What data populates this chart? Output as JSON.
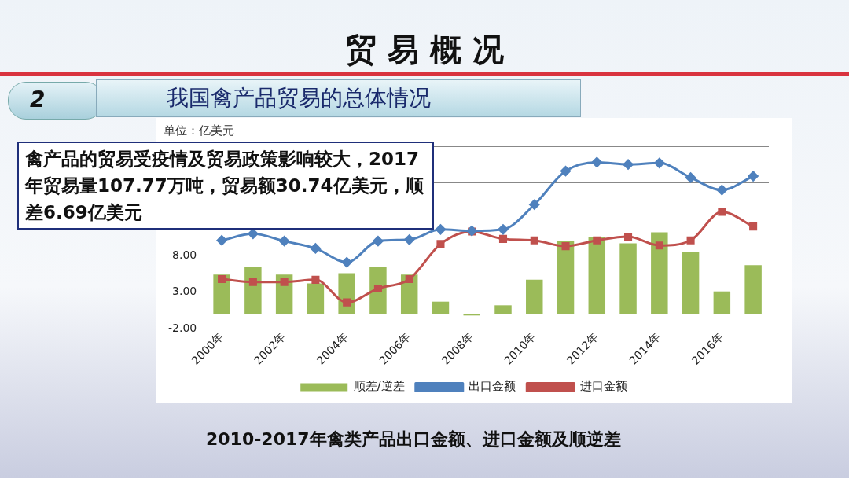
{
  "chart_data": {
    "type": "bar",
    "title": "贸 易 概 况",
    "subtitle": "我国禽产品贸易的总体情况",
    "ylabel": "单位：亿美元",
    "categories": [
      "2000年",
      null,
      "2002年",
      null,
      "2004年",
      null,
      "2006年",
      null,
      "2008年",
      null,
      "2010年",
      null,
      "2012年",
      null,
      "2014年",
      null,
      "2016年",
      null
    ],
    "series": [
      {
        "name": "顺差/逆差",
        "color": "#9bbb59",
        "values": [
          5.4,
          6.4,
          5.4,
          4.2,
          5.6,
          6.4,
          5.4,
          1.7,
          -0.2,
          1.2,
          4.7,
          10.0,
          10.6,
          9.7,
          11.2,
          8.5,
          3.1,
          6.7
        ]
      },
      {
        "name": "出口金额",
        "type": "line",
        "color": "#4f81bd",
        "marker": "diamond",
        "values": [
          10.1,
          11.0,
          10.0,
          9.0,
          7.1,
          10.0,
          10.2,
          11.6,
          11.4,
          11.6,
          15.0,
          19.6,
          20.8,
          20.5,
          20.7,
          18.7,
          17.0,
          18.9
        ]
      },
      {
        "name": "进口金额",
        "type": "line",
        "color": "#c0504d",
        "marker": "square",
        "values": [
          4.8,
          4.4,
          4.4,
          4.7,
          1.6,
          3.5,
          4.8,
          9.6,
          11.3,
          10.3,
          10.1,
          9.3,
          10.1,
          10.6,
          9.4,
          10.1,
          14.0,
          12.0
        ]
      }
    ],
    "ylim": [
      -2,
      23
    ],
    "yticks": [
      {
        "value": -2,
        "label": "-2.00"
      },
      {
        "value": 3,
        "label": "3.00"
      },
      {
        "value": 8,
        "label": "8.00"
      },
      {
        "value": 13,
        "label": null
      },
      {
        "value": 18,
        "label": null
      },
      {
        "value": 23,
        "label": null
      }
    ],
    "grid": "y",
    "legend": "bottom",
    "annotations": [
      "2",
      "禽产品的贸易受疫情及贸易政策影响较大，2017年贸易量107.77万吨，贸易额30.74亿美元，顺差6.69亿美元",
      "2010-2017年禽类产品出口金额、进口金额及顺逆差"
    ]
  }
}
